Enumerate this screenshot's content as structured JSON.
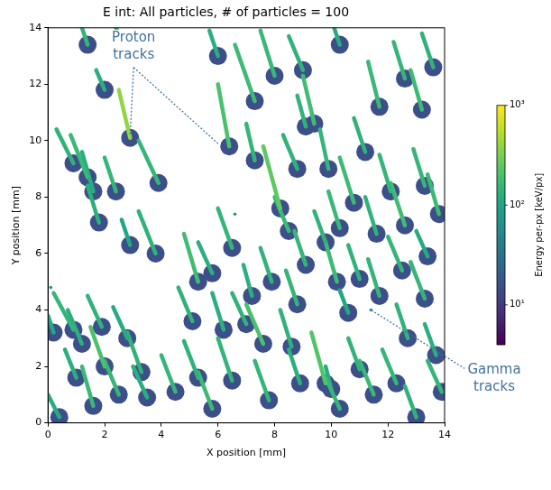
{
  "chart_data": {
    "type": "scatter",
    "title": "E int: All particles, # of particles = 100",
    "x_label": "X position [mm]",
    "y_label": "Y position [mm]",
    "xlim": [
      0,
      14
    ],
    "ylim": [
      0,
      14
    ],
    "xticks": [
      0,
      2,
      4,
      6,
      8,
      10,
      12,
      14
    ],
    "yticks": [
      0,
      2,
      4,
      6,
      8,
      10,
      12,
      14
    ],
    "grid": false,
    "halo_energy": 15,
    "tracks": [
      {
        "x": [
          1.2,
          1.4
        ],
        "y": [
          14.0,
          13.4
        ],
        "energy": 150
      },
      {
        "x": [
          2.4,
          2.6
        ],
        "y": [
          14.0,
          13.6
        ],
        "energy": 120
      },
      {
        "x": [
          2.5,
          2.9
        ],
        "y": [
          11.8,
          10.1
        ],
        "energy": 400
      },
      {
        "x": [
          1.7,
          2.0
        ],
        "y": [
          12.5,
          11.8
        ],
        "energy": 130
      },
      {
        "x": [
          3.2,
          3.9
        ],
        "y": [
          10.0,
          8.5
        ],
        "energy": 150
      },
      {
        "x": [
          0.3,
          0.9
        ],
        "y": [
          10.4,
          9.2
        ],
        "energy": 140
      },
      {
        "x": [
          0.8,
          1.4
        ],
        "y": [
          10.2,
          8.7
        ],
        "energy": 160
      },
      {
        "x": [
          1.2,
          1.6
        ],
        "y": [
          9.6,
          8.2
        ],
        "energy": 120
      },
      {
        "x": [
          2.0,
          2.4
        ],
        "y": [
          9.4,
          8.2
        ],
        "energy": 150
      },
      {
        "x": [
          1.4,
          1.8
        ],
        "y": [
          8.4,
          7.1
        ],
        "energy": 130
      },
      {
        "x": [
          3.2,
          3.8
        ],
        "y": [
          7.5,
          6.0
        ],
        "energy": 140
      },
      {
        "x": [
          2.6,
          2.9
        ],
        "y": [
          7.2,
          6.3
        ],
        "energy": 110
      },
      {
        "x": [
          0.2,
          0.9
        ],
        "y": [
          4.6,
          3.3
        ],
        "energy": 150
      },
      {
        "x": [
          0.7,
          1.2
        ],
        "y": [
          4.0,
          2.8
        ],
        "energy": 130
      },
      {
        "x": [
          0.0,
          0.2
        ],
        "y": [
          3.8,
          3.2
        ],
        "energy": 110
      },
      {
        "x": [
          1.4,
          1.9
        ],
        "y": [
          4.5,
          3.4
        ],
        "energy": 140
      },
      {
        "x": [
          1.5,
          2.0
        ],
        "y": [
          3.4,
          2.0
        ],
        "energy": 200
      },
      {
        "x": [
          0.6,
          1.0
        ],
        "y": [
          2.6,
          1.6
        ],
        "energy": 130
      },
      {
        "x": [
          1.2,
          1.6
        ],
        "y": [
          2.0,
          0.6
        ],
        "energy": 160
      },
      {
        "x": [
          2.0,
          2.5
        ],
        "y": [
          2.2,
          1.0
        ],
        "energy": 150
      },
      {
        "x": [
          2.3,
          2.8
        ],
        "y": [
          4.1,
          3.0
        ],
        "energy": 120
      },
      {
        "x": [
          2.8,
          3.3
        ],
        "y": [
          3.2,
          1.8
        ],
        "energy": 140
      },
      {
        "x": [
          3.0,
          3.5
        ],
        "y": [
          2.0,
          0.9
        ],
        "energy": 130
      },
      {
        "x": [
          0.0,
          0.4
        ],
        "y": [
          1.0,
          0.2
        ],
        "energy": 120
      },
      {
        "x": [
          4.0,
          4.5
        ],
        "y": [
          2.4,
          1.1
        ],
        "energy": 150
      },
      {
        "x": [
          4.8,
          5.3
        ],
        "y": [
          2.9,
          1.6
        ],
        "energy": 140
      },
      {
        "x": [
          5.3,
          5.8
        ],
        "y": [
          1.8,
          0.5
        ],
        "energy": 170
      },
      {
        "x": [
          6.0,
          6.5
        ],
        "y": [
          3.0,
          1.5
        ],
        "energy": 150
      },
      {
        "x": [
          5.8,
          6.2
        ],
        "y": [
          4.6,
          3.3
        ],
        "energy": 130
      },
      {
        "x": [
          6.5,
          7.0
        ],
        "y": [
          4.6,
          3.5
        ],
        "energy": 140
      },
      {
        "x": [
          7.0,
          7.6
        ],
        "y": [
          4.2,
          2.8
        ],
        "energy": 200
      },
      {
        "x": [
          7.3,
          7.8
        ],
        "y": [
          2.2,
          0.8
        ],
        "energy": 150
      },
      {
        "x": [
          8.2,
          8.6
        ],
        "y": [
          4.0,
          2.7
        ],
        "energy": 140
      },
      {
        "x": [
          8.5,
          8.9
        ],
        "y": [
          2.6,
          1.4
        ],
        "energy": 130
      },
      {
        "x": [
          9.3,
          9.8
        ],
        "y": [
          3.2,
          1.4
        ],
        "energy": 220
      },
      {
        "x": [
          9.8,
          10.3
        ],
        "y": [
          1.6,
          0.5
        ],
        "energy": 150
      },
      {
        "x": [
          10.3,
          10.6
        ],
        "y": [
          4.7,
          3.9
        ],
        "energy": 110
      },
      {
        "x": [
          10.6,
          11.0
        ],
        "y": [
          3.0,
          1.9
        ],
        "energy": 140
      },
      {
        "x": [
          11.0,
          11.5
        ],
        "y": [
          2.2,
          1.0
        ],
        "energy": 160
      },
      {
        "x": [
          11.8,
          12.3
        ],
        "y": [
          2.6,
          1.4
        ],
        "energy": 150
      },
      {
        "x": [
          12.3,
          12.7
        ],
        "y": [
          4.2,
          3.0
        ],
        "energy": 140
      },
      {
        "x": [
          12.8,
          13.3
        ],
        "y": [
          5.7,
          4.4
        ],
        "energy": 150
      },
      {
        "x": [
          13.3,
          13.7
        ],
        "y": [
          3.5,
          2.4
        ],
        "energy": 130
      },
      {
        "x": [
          13.4,
          13.9
        ],
        "y": [
          2.2,
          1.1
        ],
        "energy": 150
      },
      {
        "x": [
          12.6,
          13.0
        ],
        "y": [
          1.3,
          0.2
        ],
        "energy": 140
      },
      {
        "x": [
          4.8,
          5.3
        ],
        "y": [
          6.7,
          5.0
        ],
        "energy": 180
      },
      {
        "x": [
          5.3,
          5.8
        ],
        "y": [
          6.4,
          5.3
        ],
        "energy": 130
      },
      {
        "x": [
          6.0,
          6.5
        ],
        "y": [
          7.6,
          6.2
        ],
        "energy": 150
      },
      {
        "x": [
          7.6,
          8.2
        ],
        "y": [
          9.8,
          7.6
        ],
        "energy": 250
      },
      {
        "x": [
          8.0,
          8.5
        ],
        "y": [
          8.0,
          6.8
        ],
        "energy": 160
      },
      {
        "x": [
          8.3,
          8.8
        ],
        "y": [
          10.2,
          9.0
        ],
        "energy": 140
      },
      {
        "x": [
          6.0,
          6.4
        ],
        "y": [
          12.0,
          9.8
        ],
        "energy": 200
      },
      {
        "x": [
          6.6,
          7.3
        ],
        "y": [
          13.4,
          11.4
        ],
        "energy": 170
      },
      {
        "x": [
          7.5,
          8.0
        ],
        "y": [
          13.9,
          12.3
        ],
        "energy": 160
      },
      {
        "x": [
          8.5,
          9.0
        ],
        "y": [
          13.7,
          12.5
        ],
        "energy": 140
      },
      {
        "x": [
          9.0,
          9.4
        ],
        "y": [
          12.3,
          10.6
        ],
        "energy": 180
      },
      {
        "x": [
          9.6,
          9.9
        ],
        "y": [
          10.4,
          9.0
        ],
        "energy": 150
      },
      {
        "x": [
          10.3,
          10.8
        ],
        "y": [
          9.4,
          7.8
        ],
        "energy": 170
      },
      {
        "x": [
          10.8,
          11.2
        ],
        "y": [
          10.8,
          9.6
        ],
        "energy": 140
      },
      {
        "x": [
          11.3,
          11.7
        ],
        "y": [
          12.8,
          11.2
        ],
        "energy": 160
      },
      {
        "x": [
          12.2,
          12.6
        ],
        "y": [
          13.5,
          12.2
        ],
        "energy": 150
      },
      {
        "x": [
          12.8,
          13.2
        ],
        "y": [
          12.5,
          11.1
        ],
        "energy": 170
      },
      {
        "x": [
          13.2,
          13.6
        ],
        "y": [
          13.8,
          12.6
        ],
        "energy": 140
      },
      {
        "x": [
          11.7,
          12.1
        ],
        "y": [
          9.5,
          8.2
        ],
        "energy": 150
      },
      {
        "x": [
          12.1,
          12.6
        ],
        "y": [
          8.5,
          7.0
        ],
        "energy": 180
      },
      {
        "x": [
          12.9,
          13.3
        ],
        "y": [
          9.7,
          8.4
        ],
        "energy": 150
      },
      {
        "x": [
          13.4,
          13.8
        ],
        "y": [
          8.8,
          7.4
        ],
        "energy": 160
      },
      {
        "x": [
          11.2,
          11.6
        ],
        "y": [
          8.0,
          6.7
        ],
        "energy": 140
      },
      {
        "x": [
          12.0,
          12.5
        ],
        "y": [
          6.6,
          5.4
        ],
        "energy": 150
      },
      {
        "x": [
          13.0,
          13.4
        ],
        "y": [
          6.8,
          5.9
        ],
        "energy": 120
      },
      {
        "x": [
          9.9,
          10.3
        ],
        "y": [
          8.2,
          6.9
        ],
        "energy": 160
      },
      {
        "x": [
          9.4,
          9.8
        ],
        "y": [
          7.5,
          6.4
        ],
        "energy": 140
      },
      {
        "x": [
          8.7,
          9.1
        ],
        "y": [
          6.8,
          5.6
        ],
        "energy": 150
      },
      {
        "x": [
          9.8,
          10.2
        ],
        "y": [
          6.4,
          5.0
        ],
        "energy": 170
      },
      {
        "x": [
          10.6,
          11.0
        ],
        "y": [
          6.3,
          5.1
        ],
        "energy": 140
      },
      {
        "x": [
          11.3,
          11.7
        ],
        "y": [
          5.8,
          4.5
        ],
        "energy": 150
      },
      {
        "x": [
          7.5,
          7.9
        ],
        "y": [
          6.2,
          5.0
        ],
        "energy": 140
      },
      {
        "x": [
          8.4,
          8.8
        ],
        "y": [
          5.4,
          4.2
        ],
        "energy": 150
      },
      {
        "x": [
          6.9,
          7.2
        ],
        "y": [
          5.6,
          4.5
        ],
        "energy": 130
      },
      {
        "x": [
          4.6,
          5.1
        ],
        "y": [
          4.8,
          3.6
        ],
        "energy": 140
      },
      {
        "x": [
          9.8,
          10.0
        ],
        "y": [
          2.0,
          1.2
        ],
        "energy": 120
      },
      {
        "x": [
          5.7,
          6.0
        ],
        "y": [
          13.9,
          13.0
        ],
        "energy": 130
      },
      {
        "x": [
          10.1,
          10.3
        ],
        "y": [
          14.0,
          13.4
        ],
        "energy": 120
      },
      {
        "x": [
          7.0,
          7.3
        ],
        "y": [
          10.6,
          9.3
        ],
        "energy": 150
      },
      {
        "x": [
          8.8,
          9.1
        ],
        "y": [
          11.6,
          10.5
        ],
        "energy": 140
      }
    ],
    "gamma_points": [
      {
        "x": 0.1,
        "y": 4.8,
        "energy": 60
      },
      {
        "x": 11.4,
        "y": 4.0,
        "energy": 60
      },
      {
        "x": 6.6,
        "y": 7.4,
        "energy": 60
      }
    ],
    "annotations": [
      {
        "text": "Proton tracks",
        "points": [
          [
            2.9,
            10.2
          ],
          [
            6.0,
            9.9
          ]
        ]
      },
      {
        "text": "Gamma tracks",
        "points": [
          [
            11.4,
            4.0
          ]
        ]
      }
    ],
    "colorbar": {
      "label": "Energy per-px [keV/px]",
      "range": [
        4,
        1000
      ],
      "log": true,
      "ticks": [
        {
          "value": 10,
          "label": "10¹"
        },
        {
          "value": 100,
          "label": "10²"
        },
        {
          "value": 1000,
          "label": "10³"
        }
      ]
    }
  }
}
